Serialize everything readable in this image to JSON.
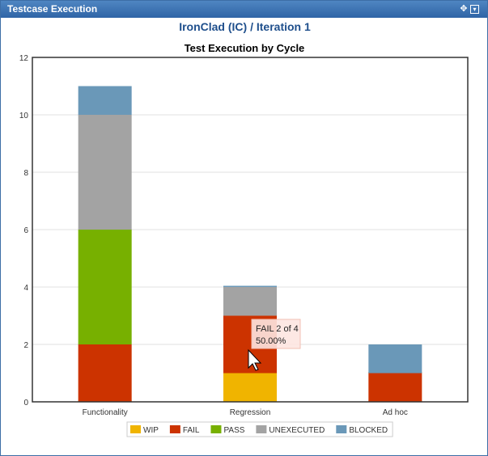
{
  "window": {
    "title": "Testcase Execution"
  },
  "page": {
    "heading": "IronClad (IC) / Iteration 1"
  },
  "icons": {
    "move": "move-icon",
    "menu": "dropdown-menu-icon"
  },
  "colors": {
    "WIP": "#f0b400",
    "FAIL": "#cc3300",
    "PASS": "#77b000",
    "UNEXECUTED": "#a3a3a3",
    "BLOCKED": "#6a98b8"
  },
  "tooltip": {
    "line1": "FAIL 2 of 4",
    "line2": "50.00%"
  },
  "chart_data": {
    "type": "bar",
    "stacked": true,
    "title": "Test Execution by Cycle",
    "categories": [
      "Functionality",
      "Regression",
      "Ad hoc"
    ],
    "series": [
      {
        "name": "WIP",
        "values": [
          0,
          1,
          0
        ]
      },
      {
        "name": "FAIL",
        "values": [
          2,
          2,
          1
        ]
      },
      {
        "name": "PASS",
        "values": [
          4,
          0,
          0
        ]
      },
      {
        "name": "UNEXECUTED",
        "values": [
          4,
          1,
          0
        ]
      },
      {
        "name": "BLOCKED",
        "values": [
          1,
          0,
          1
        ]
      }
    ],
    "ylim": [
      0,
      12
    ],
    "yticks": [
      0,
      2,
      4,
      6,
      8,
      10,
      12
    ],
    "grid": true,
    "legend": "bottom",
    "xlabel": "",
    "ylabel": ""
  }
}
